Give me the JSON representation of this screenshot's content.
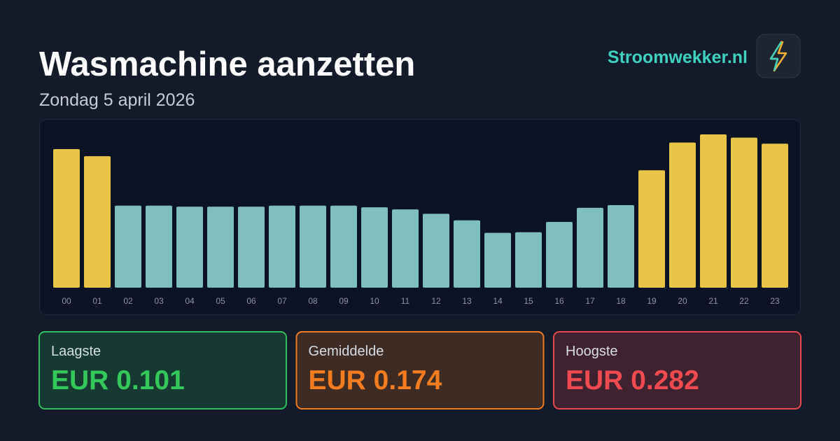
{
  "header": {
    "title": "Wasmachine aanzetten",
    "subtitle": "Zondag 5 april 2026",
    "brand": "Stroomwekker.nl"
  },
  "chart_data": {
    "type": "bar",
    "categories": [
      "00",
      "01",
      "02",
      "03",
      "04",
      "05",
      "06",
      "07",
      "08",
      "09",
      "10",
      "11",
      "12",
      "13",
      "14",
      "15",
      "16",
      "17",
      "18",
      "19",
      "20",
      "21",
      "22",
      "23"
    ],
    "values": [
      0.255,
      0.242,
      0.151,
      0.151,
      0.149,
      0.149,
      0.149,
      0.151,
      0.151,
      0.151,
      0.148,
      0.144,
      0.136,
      0.124,
      0.101,
      0.102,
      0.121,
      0.147,
      0.152,
      0.216,
      0.267,
      0.282,
      0.276,
      0.265
    ],
    "colors": [
      "#e8c547",
      "#e8c547",
      "#7fbfbf",
      "#7fbfbf",
      "#7fbfbf",
      "#7fbfbf",
      "#7fbfbf",
      "#7fbfbf",
      "#7fbfbf",
      "#7fbfbf",
      "#7fbfbf",
      "#7fbfbf",
      "#7fbfbf",
      "#7fbfbf",
      "#7fbfbf",
      "#7fbfbf",
      "#7fbfbf",
      "#7fbfbf",
      "#7fbfbf",
      "#e8c547",
      "#e8c547",
      "#e8c547",
      "#e8c547",
      "#e8c547"
    ]
  },
  "cards": [
    {
      "label": "Laagste",
      "value": "EUR 0.101"
    },
    {
      "label": "Gemiddelde",
      "value": "EUR 0.174"
    },
    {
      "label": "Hoogste",
      "value": "EUR 0.282"
    }
  ]
}
